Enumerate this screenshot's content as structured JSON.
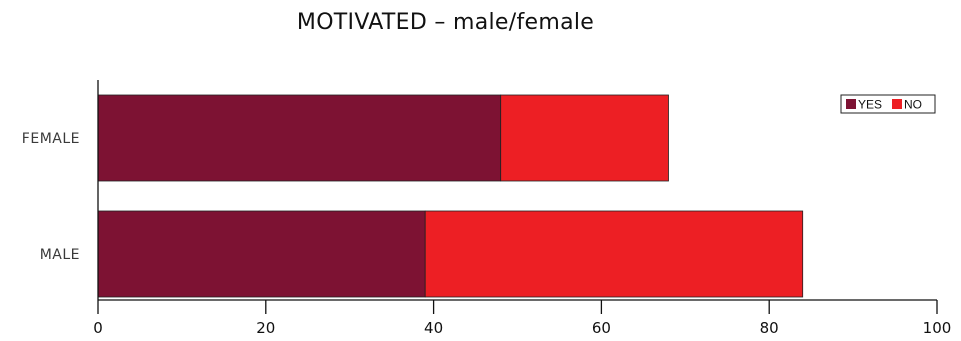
{
  "chart_data": {
    "type": "bar",
    "orientation": "horizontal",
    "stacked": true,
    "title": "MOTIVATED – male/female",
    "xlabel": "",
    "ylabel": "",
    "categories": [
      "FEMALE",
      "MALE"
    ],
    "series": [
      {
        "name": "YES",
        "values": [
          48,
          39
        ],
        "color": "#7d1233"
      },
      {
        "name": "NO",
        "values": [
          20,
          45
        ],
        "color": "#ed1f24"
      }
    ],
    "xlim": [
      0,
      100
    ],
    "xticks": [
      0,
      20,
      40,
      60,
      80,
      100
    ],
    "grid": false,
    "legend_position": "top-right"
  }
}
